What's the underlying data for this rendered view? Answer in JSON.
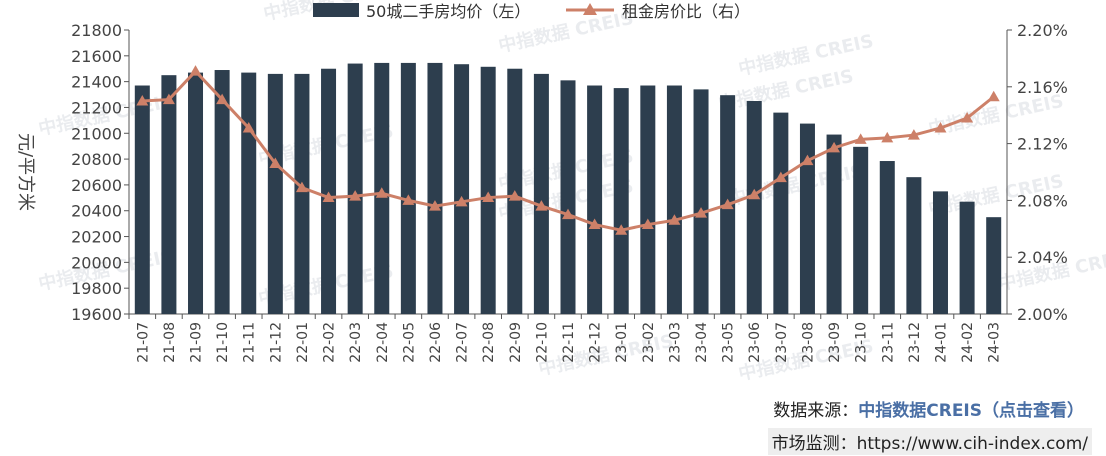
{
  "chart_data": {
    "type": "bar",
    "categories": [
      "21-07",
      "21-08",
      "21-09",
      "21-10",
      "21-11",
      "21-12",
      "22-01",
      "22-02",
      "22-03",
      "22-04",
      "22-05",
      "22-06",
      "22-07",
      "22-08",
      "22-09",
      "22-10",
      "22-11",
      "22-12",
      "23-01",
      "23-02",
      "23-03",
      "23-04",
      "23-05",
      "23-06",
      "23-07",
      "23-08",
      "23-09",
      "23-10",
      "23-11",
      "23-12",
      "24-01",
      "24-02",
      "24-03"
    ],
    "series": [
      {
        "name": "50城二手房均价（左）",
        "type": "bar",
        "axis": "left",
        "color": "#2d3e4e",
        "values": [
          21370,
          21450,
          21470,
          21490,
          21470,
          21460,
          21460,
          21500,
          21540,
          21545,
          21545,
          21545,
          21535,
          21515,
          21500,
          21460,
          21410,
          21370,
          21350,
          21370,
          21370,
          21340,
          21295,
          21250,
          21160,
          21075,
          20990,
          20895,
          20785,
          20660,
          20550,
          20470,
          20350
        ]
      },
      {
        "name": "租金房价比（右）",
        "type": "line",
        "axis": "right",
        "color": "#cd8068",
        "marker": "triangle",
        "values": [
          2.15,
          2.151,
          2.171,
          2.151,
          2.131,
          2.106,
          2.089,
          2.082,
          2.083,
          2.085,
          2.08,
          2.076,
          2.079,
          2.082,
          2.083,
          2.076,
          2.07,
          2.063,
          2.059,
          2.063,
          2.066,
          2.071,
          2.077,
          2.084,
          2.096,
          2.108,
          2.117,
          2.123,
          2.124,
          2.126,
          2.131,
          2.138,
          2.153
        ]
      }
    ],
    "ylabel": "元/平方米",
    "ylim": [
      19600,
      21800
    ],
    "yticks": [
      "21800",
      "21600",
      "21400",
      "21200",
      "21000",
      "20800",
      "20600",
      "20400",
      "20200",
      "20000",
      "19800",
      "19600"
    ],
    "y2lim": [
      2.0,
      2.2
    ],
    "y2ticks": [
      "2.20%",
      "2.16%",
      "2.12%",
      "2.08%",
      "2.04%",
      "2.00%"
    ],
    "legend_position": "top",
    "grid": false
  },
  "watermark": "中指数据 CREIS",
  "footer": {
    "source_label": "数据来源：",
    "source_name": "中指数据CREIS",
    "source_hint": "（点击查看）",
    "monitor_label": "市场监测：",
    "monitor_url": "https://www.cih-index.com/"
  }
}
